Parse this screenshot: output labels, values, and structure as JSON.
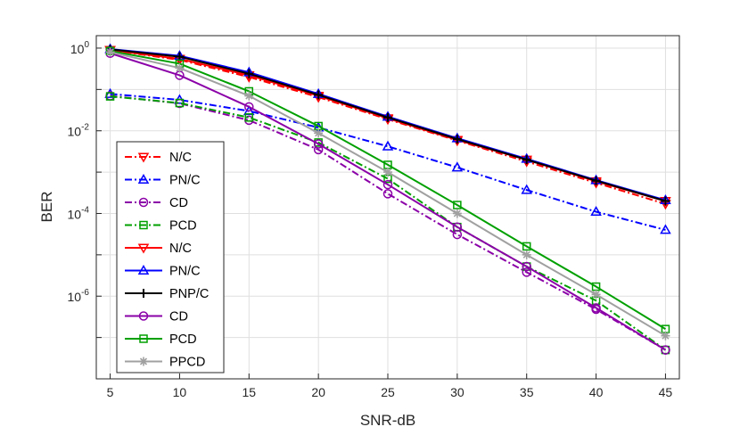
{
  "chart_data": {
    "type": "line",
    "title": "",
    "xlabel": "SNR-dB",
    "ylabel": "BER",
    "x": [
      5,
      10,
      15,
      20,
      25,
      30,
      35,
      40,
      45
    ],
    "xlim": [
      4,
      46
    ],
    "ylim": [
      1e-08,
      2
    ],
    "yscale": "log",
    "grid": true,
    "legend_position": "bottom-left",
    "x_ticks": [
      "5",
      "10",
      "15",
      "20",
      "25",
      "30",
      "35",
      "40",
      "45"
    ],
    "y_ticks": [
      {
        "base": "10",
        "exp": "0",
        "value": 1
      },
      {
        "base": "10",
        "exp": "-2",
        "value": 0.01
      },
      {
        "base": "10",
        "exp": "-4",
        "value": 0.0001
      },
      {
        "base": "10",
        "exp": "-6",
        "value": 1e-06
      }
    ],
    "series": [
      {
        "name": "N/C",
        "color": "#ff0000",
        "dash": "dashdot",
        "marker": "triangle-down",
        "values": [
          0.9,
          0.52,
          0.2,
          0.065,
          0.019,
          0.0058,
          0.0018,
          0.00055,
          0.00017
        ]
      },
      {
        "name": "PN/C",
        "color": "#0000ff",
        "dash": "dashdot",
        "marker": "triangle-up",
        "values": [
          0.078,
          0.056,
          0.03,
          0.012,
          0.0042,
          0.0013,
          0.00037,
          0.00011,
          4e-05
        ]
      },
      {
        "name": "CD",
        "color": "#8b00a8",
        "dash": "dashdot",
        "marker": "circle",
        "values": [
          0.07,
          0.046,
          0.018,
          0.0035,
          0.0003,
          3.1e-05,
          3.8e-06,
          4.8e-07,
          5e-08
        ]
      },
      {
        "name": "PCD",
        "color": "#00a000",
        "dash": "dashdot",
        "marker": "square",
        "values": [
          0.068,
          0.047,
          0.021,
          0.0052,
          0.00069,
          4.7e-05,
          5.2e-06,
          7.8e-07,
          5e-08
        ]
      },
      {
        "name": "N/C",
        "color": "#ff0000",
        "dash": "solid",
        "marker": "triangle-down",
        "values": [
          0.9,
          0.55,
          0.22,
          0.07,
          0.02,
          0.006,
          0.002,
          0.0006,
          0.0002
        ]
      },
      {
        "name": "PN/C",
        "color": "#0000ff",
        "dash": "solid",
        "marker": "triangle-up",
        "values": [
          0.95,
          0.65,
          0.26,
          0.078,
          0.022,
          0.0066,
          0.0021,
          0.00064,
          0.00021
        ]
      },
      {
        "name": "PNP/C",
        "color": "#000000",
        "dash": "solid",
        "marker": "plus",
        "values": [
          0.93,
          0.62,
          0.24,
          0.074,
          0.021,
          0.0063,
          0.002,
          0.00062,
          0.0002
        ]
      },
      {
        "name": "CD",
        "color": "#8b00a8",
        "dash": "solid",
        "marker": "circle",
        "values": [
          0.75,
          0.22,
          0.038,
          0.0048,
          0.0005,
          4.7e-05,
          5.2e-06,
          5.2e-07,
          5e-08
        ]
      },
      {
        "name": "PCD",
        "color": "#00a000",
        "dash": "solid",
        "marker": "square",
        "values": [
          0.85,
          0.42,
          0.09,
          0.013,
          0.0015,
          0.00016,
          1.6e-05,
          1.7e-06,
          1.6e-07
        ]
      },
      {
        "name": "PPCD",
        "color": "#a0a0a0",
        "dash": "solid",
        "marker": "asterisk",
        "values": [
          0.8,
          0.33,
          0.07,
          0.0088,
          0.001,
          0.0001,
          1e-05,
          1.1e-06,
          1.1e-07
        ]
      }
    ]
  }
}
